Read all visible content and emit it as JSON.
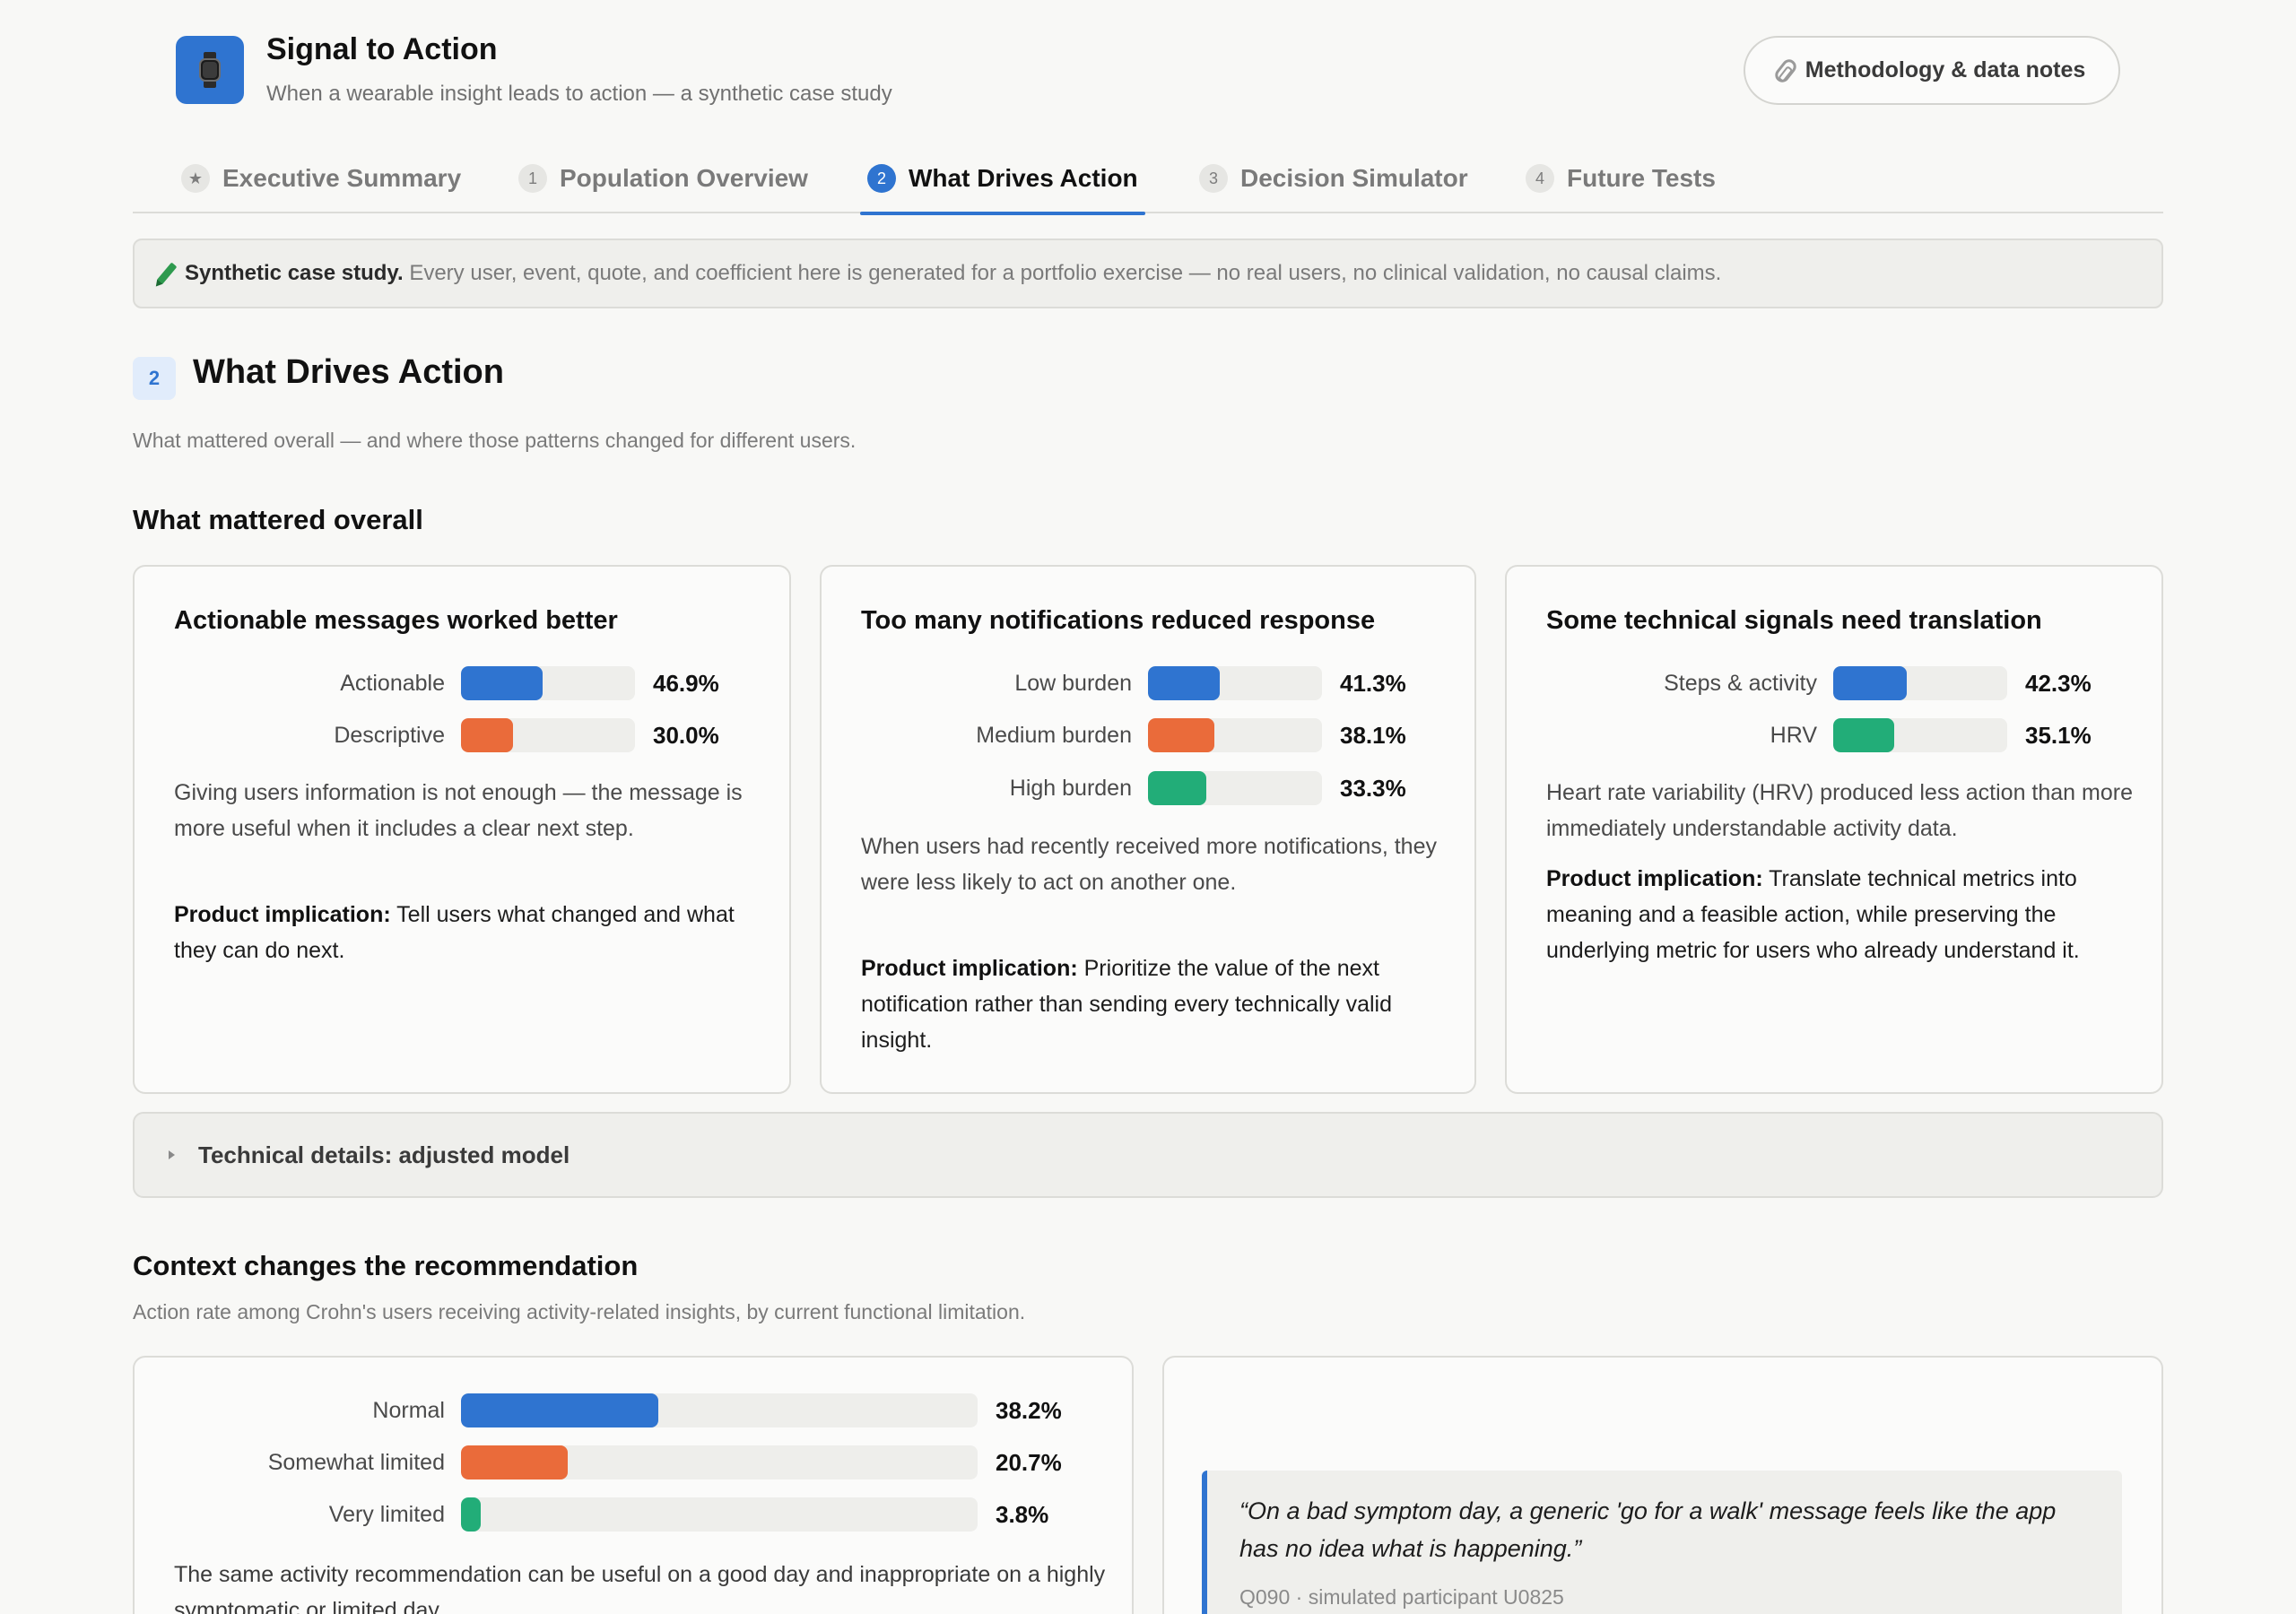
{
  "header": {
    "title": "Signal to Action",
    "subtitle": "When a wearable insight leads to action — a synthetic case study",
    "methodology_label": "Methodology & data notes"
  },
  "tabs": [
    {
      "num": "★",
      "label": "Executive Summary"
    },
    {
      "num": "1",
      "label": "Population Overview"
    },
    {
      "num": "2",
      "label": "What Drives Action",
      "active": true
    },
    {
      "num": "3",
      "label": "Decision Simulator"
    },
    {
      "num": "4",
      "label": "Future Tests"
    }
  ],
  "banner": {
    "bold": "Synthetic case study.",
    "text": "Every user, event, quote, and coefficient here is generated for a portfolio exercise — no real users, no clinical validation, no causal claims."
  },
  "section": {
    "num": "2",
    "title": "What Drives Action",
    "subtitle": "What mattered overall — and where those patterns changed for different users."
  },
  "overall_heading": "What mattered overall",
  "cards": [
    {
      "title": "Actionable messages worked better",
      "bars": [
        {
          "label": "Actionable",
          "value": "46.9%"
        },
        {
          "label": "Descriptive",
          "value": "30.0%"
        }
      ],
      "text": "Giving users information is not enough — the message is more useful when it includes a clear next step.",
      "impl_label": "Product implication:",
      "impl_text": " Tell users what changed and what they can do next."
    },
    {
      "title": "Too many notifications reduced response",
      "bars": [
        {
          "label": "Low burden",
          "value": "41.3%"
        },
        {
          "label": "Medium burden",
          "value": "38.1%"
        },
        {
          "label": "High burden",
          "value": "33.3%"
        }
      ],
      "text": "When users had recently received more notifications, they were less likely to act on another one.",
      "impl_label": "Product implication:",
      "impl_text": " Prioritize the value of the next notification rather than sending every technically valid insight."
    },
    {
      "title": "Some technical signals need translation",
      "bars": [
        {
          "label": "Steps & activity",
          "value": "42.3%"
        },
        {
          "label": "HRV",
          "value": "35.1%"
        }
      ],
      "text": "Heart rate variability (HRV) produced less action than more immediately understandable activity data.",
      "impl_label": "Product implication:",
      "impl_text": " Translate technical metrics into meaning and a feasible action, while preserving the underlying metric for users who already understand it."
    }
  ],
  "details_label": "Technical details: adjusted model",
  "context": {
    "heading": "Context changes the recommendation",
    "subtitle": "Action rate among Crohn's users receiving activity-related insights, by current functional limitation.",
    "bars": [
      {
        "label": "Normal",
        "value": "38.2%"
      },
      {
        "label": "Somewhat limited",
        "value": "20.7%"
      },
      {
        "label": "Very limited",
        "value": "3.8%"
      }
    ],
    "text": "The same activity recommendation can be useful on a good day and inappropriate on a highly symptomatic or limited day.",
    "quote": "“On a bad symptom day, a generic 'go for a walk' message feels like the app has no idea what is happening.”",
    "quote_source": "Q090 · simulated participant U0825"
  },
  "chart_data": [
    {
      "type": "bar",
      "categories": [
        "Actionable",
        "Descriptive"
      ],
      "values": [
        46.9,
        30.0
      ],
      "title": "Actionable messages worked better",
      "colors": [
        "#2f74d0",
        "#ea6b3a"
      ],
      "ylim": [
        0,
        100
      ]
    },
    {
      "type": "bar",
      "categories": [
        "Low burden",
        "Medium burden",
        "High burden"
      ],
      "values": [
        41.3,
        38.1,
        33.3
      ],
      "title": "Too many notifications reduced response",
      "colors": [
        "#2f74d0",
        "#ea6b3a",
        "#22ad78"
      ],
      "ylim": [
        0,
        100
      ]
    },
    {
      "type": "bar",
      "categories": [
        "Steps & activity",
        "HRV"
      ],
      "values": [
        42.3,
        35.1
      ],
      "title": "Some technical signals need translation",
      "colors": [
        "#2f74d0",
        "#22ad78"
      ],
      "ylim": [
        0,
        100
      ]
    },
    {
      "type": "bar",
      "categories": [
        "Normal",
        "Somewhat limited",
        "Very limited"
      ],
      "values": [
        38.2,
        20.7,
        3.8
      ],
      "title": "Context changes the recommendation",
      "colors": [
        "#2f74d0",
        "#ea6b3a",
        "#22ad78"
      ],
      "ylim": [
        0,
        100
      ]
    }
  ]
}
